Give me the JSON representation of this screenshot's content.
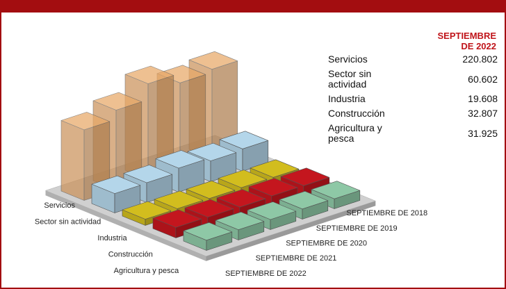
{
  "chart_data": {
    "type": "bar3d",
    "categories": [
      "SEPTIEMBRE DE 2018",
      "SEPTIEMBRE DE 2019",
      "SEPTIEMBRE DE 2020",
      "SEPTIEMBRE DE 2021",
      "SEPTIEMBRE DE 2022"
    ],
    "series": [
      {
        "name": "Servicios",
        "color": "#e8a868",
        "values": [
          280000,
          270000,
          300000,
          250000,
          220802
        ]
      },
      {
        "name": "Sector sin actividad",
        "color": "#b4d6ea",
        "values": [
          70000,
          65000,
          75000,
          62000,
          60602
        ]
      },
      {
        "name": "Industria",
        "color": "#d2bd1e",
        "values": [
          20000,
          20500,
          19000,
          19800,
          19608
        ]
      },
      {
        "name": "Construcción",
        "color": "#c4161e",
        "values": [
          33000,
          33500,
          31000,
          32500,
          32807
        ]
      },
      {
        "name": "Agricultura y pesca",
        "color": "#8ec8a6",
        "values": [
          31000,
          32000,
          31500,
          32200,
          31925
        ]
      }
    ]
  },
  "table": {
    "header": [
      "SEPTIEMBRE",
      "DE 2022"
    ],
    "rows": [
      {
        "label": "Servicios",
        "value": "220.802"
      },
      {
        "label": "Sector sin actividad",
        "value": "60.602"
      },
      {
        "label": "Industria",
        "value": "19.608"
      },
      {
        "label": "Construcción",
        "value": "32.807"
      },
      {
        "label": "Agricultura y pesca",
        "value": "31.925"
      }
    ]
  }
}
